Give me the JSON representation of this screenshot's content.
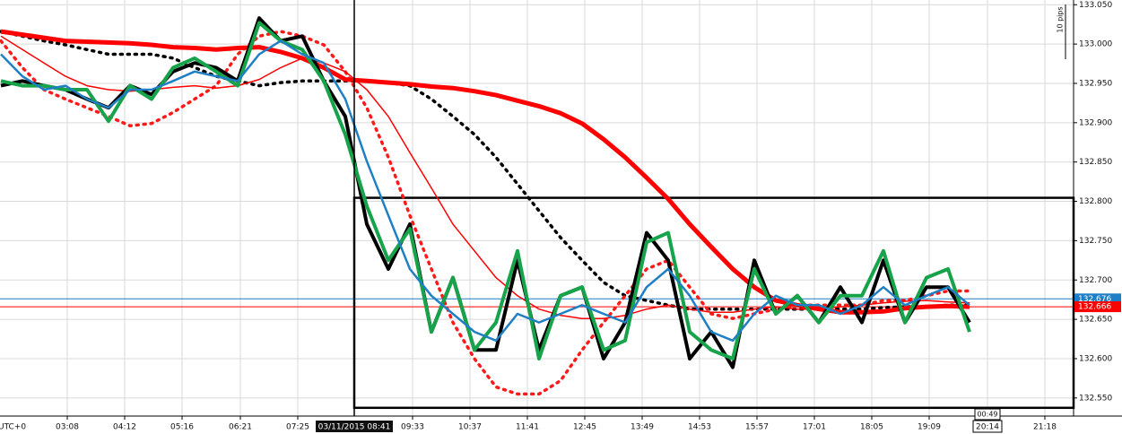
{
  "chart_data": {
    "type": "line",
    "timezone_label": "UTC+0",
    "scale_label": "10 pips",
    "x": [
      114,
      138,
      162,
      186,
      210,
      234,
      258,
      282,
      306,
      330,
      354,
      378,
      402,
      426,
      450,
      474,
      498,
      522,
      546,
      570,
      594,
      618,
      642,
      666,
      690,
      714,
      738,
      762,
      786,
      810,
      834,
      858,
      882,
      906,
      930,
      954,
      978,
      1002,
      1026,
      1050,
      1074,
      1098,
      1122,
      1146,
      1170,
      1194
    ],
    "xlim": [
      113,
      1310
    ],
    "ylim": [
      132.527,
      133.056
    ],
    "grid": true,
    "xticks": [
      {
        "value": 188,
        "label": "03:08"
      },
      {
        "value": 252,
        "label": "04:12"
      },
      {
        "value": 316,
        "label": "05:16"
      },
      {
        "value": 381,
        "label": "06:21"
      },
      {
        "value": 445,
        "label": "07:25"
      },
      {
        "value": 573,
        "label": "09:33"
      },
      {
        "value": 637,
        "label": "10:37"
      },
      {
        "value": 701,
        "label": "11:41"
      },
      {
        "value": 765,
        "label": "12:45"
      },
      {
        "value": 829,
        "label": "13:49"
      },
      {
        "value": 893,
        "label": "14:53"
      },
      {
        "value": 957,
        "label": "15:57"
      },
      {
        "value": 1021,
        "label": "17:01"
      },
      {
        "value": 1085,
        "label": "18:05"
      },
      {
        "value": 1149,
        "label": "19:09"
      },
      {
        "value": 1214,
        "label": "20:14"
      },
      {
        "value": 1278,
        "label": "21:18"
      }
    ],
    "yticks": [
      {
        "value": 132.55,
        "label": "132.550"
      },
      {
        "value": 132.6,
        "label": "132.600"
      },
      {
        "value": 132.65,
        "label": "132.650"
      },
      {
        "value": 132.7,
        "label": "132.700"
      },
      {
        "value": 132.75,
        "label": "132.750"
      },
      {
        "value": 132.8,
        "label": "132.800"
      },
      {
        "value": 132.85,
        "label": "132.850"
      },
      {
        "value": 132.9,
        "label": "132.900"
      },
      {
        "value": 132.95,
        "label": "132.950"
      },
      {
        "value": 133.0,
        "label": "133.000"
      },
      {
        "value": 133.05,
        "label": "133.050"
      }
    ],
    "crosshair": {
      "x": 508,
      "label": "03/11/2015 08:41"
    },
    "countdown": {
      "x": 1214,
      "label": "00:49"
    },
    "rectangle": {
      "x": [
        508,
        1310
      ],
      "y": [
        132.5375,
        132.8045
      ],
      "color": "#000000"
    },
    "price_lines": [
      {
        "value": 132.676,
        "color": "#1f7fc4"
      },
      {
        "value": 132.666,
        "color": "#ff0000"
      }
    ],
    "series": [
      {
        "color": "#000000",
        "style": "dotted",
        "values": [
          133.016,
          133.01,
          133.004,
          132.999,
          132.993,
          132.987,
          132.987,
          132.987,
          132.982,
          132.97,
          132.959,
          132.953,
          132.947,
          132.951,
          132.953,
          132.953,
          132.953,
          132.953,
          132.951,
          132.947,
          132.93,
          132.908,
          132.885,
          132.856,
          132.822,
          132.788,
          132.754,
          132.725,
          132.697,
          132.68,
          132.674,
          132.668,
          132.663,
          132.663,
          132.663,
          132.663,
          132.663,
          132.663,
          132.663,
          132.663,
          132.663,
          132.665,
          132.666,
          132.666,
          132.668,
          132.668
        ]
      },
      {
        "color": "#ff1a1a",
        "style": "dotted",
        "values": [
          133.004,
          132.97,
          132.942,
          132.93,
          132.919,
          132.908,
          132.896,
          132.899,
          132.913,
          132.93,
          132.947,
          132.987,
          133.01,
          133.016,
          133.01,
          132.999,
          132.965,
          132.919,
          132.856,
          132.782,
          132.714,
          132.646,
          132.6,
          132.564,
          132.555,
          132.555,
          132.572,
          132.611,
          132.646,
          132.68,
          132.714,
          132.725,
          132.691,
          132.657,
          132.651,
          132.657,
          132.663,
          132.668,
          132.668,
          132.668,
          132.668,
          132.674,
          132.674,
          132.68,
          132.686,
          132.686
        ]
      },
      {
        "color": "#ff0000",
        "style": "thin",
        "values": [
          133.01,
          132.993,
          132.976,
          132.959,
          132.947,
          132.942,
          132.94,
          132.942,
          132.945,
          132.947,
          132.944,
          132.947,
          132.955,
          132.97,
          132.982,
          132.976,
          132.965,
          132.942,
          132.908,
          132.862,
          132.817,
          132.771,
          132.737,
          132.703,
          132.68,
          132.663,
          132.655,
          132.651,
          132.651,
          132.655,
          132.663,
          132.668,
          132.663,
          132.659,
          132.659,
          132.663,
          132.666,
          132.663,
          132.663,
          132.666,
          132.668,
          132.671,
          132.673,
          132.674,
          132.672,
          132.671
        ]
      },
      {
        "color": "#ff0000",
        "style": "thick",
        "values": [
          133.016,
          133.012,
          133.008,
          133.004,
          133.003,
          133.002,
          133.001,
          132.999,
          132.996,
          132.995,
          132.993,
          132.995,
          132.996,
          132.99,
          132.982,
          132.97,
          132.955,
          132.953,
          132.951,
          132.949,
          132.946,
          132.944,
          132.94,
          132.935,
          132.928,
          132.921,
          132.912,
          132.899,
          132.879,
          132.856,
          132.83,
          132.803,
          132.771,
          132.742,
          132.714,
          132.691,
          132.674,
          132.668,
          132.663,
          132.659,
          132.659,
          132.66,
          132.664,
          132.666,
          132.667,
          132.666
        ]
      },
      {
        "color": "#000000",
        "style": "bold",
        "values": [
          132.947,
          132.953,
          132.947,
          132.942,
          132.93,
          132.919,
          132.947,
          132.936,
          132.965,
          132.976,
          132.97,
          132.953,
          133.033,
          133.004,
          133.01,
          132.953,
          132.908,
          132.771,
          132.714,
          132.771,
          132.634,
          132.703,
          132.611,
          132.611,
          132.725,
          132.611,
          132.68,
          132.691,
          132.6,
          132.646,
          132.76,
          132.725,
          132.6,
          132.634,
          132.589,
          132.725,
          132.657,
          132.68,
          132.646,
          132.691,
          132.646,
          132.725,
          132.646,
          132.691,
          132.691,
          132.646
        ]
      },
      {
        "color": "#17a34a",
        "style": "bold",
        "values": [
          132.953,
          132.947,
          132.947,
          132.942,
          132.942,
          132.902,
          132.947,
          132.93,
          132.97,
          132.982,
          132.965,
          132.947,
          133.027,
          133.004,
          132.993,
          132.953,
          132.885,
          132.794,
          132.725,
          132.765,
          132.634,
          132.703,
          132.611,
          132.646,
          132.737,
          132.6,
          132.68,
          132.691,
          132.611,
          132.623,
          132.748,
          132.76,
          132.634,
          132.611,
          132.6,
          132.714,
          132.657,
          132.68,
          132.646,
          132.68,
          132.68,
          132.737,
          132.646,
          132.703,
          132.714,
          132.634
        ]
      },
      {
        "color": "#1f7fc4",
        "style": "medium",
        "values": [
          132.987,
          132.959,
          132.942,
          132.947,
          132.93,
          132.919,
          132.942,
          132.942,
          132.953,
          132.965,
          132.959,
          132.953,
          132.987,
          133.004,
          132.987,
          132.976,
          132.93,
          132.851,
          132.782,
          132.714,
          132.68,
          132.657,
          132.634,
          132.623,
          132.657,
          132.646,
          132.657,
          132.668,
          132.657,
          132.646,
          132.691,
          132.714,
          132.68,
          132.634,
          132.623,
          132.657,
          132.68,
          132.668,
          132.668,
          132.657,
          132.668,
          132.691,
          132.668,
          132.68,
          132.691,
          132.668
        ]
      }
    ]
  }
}
